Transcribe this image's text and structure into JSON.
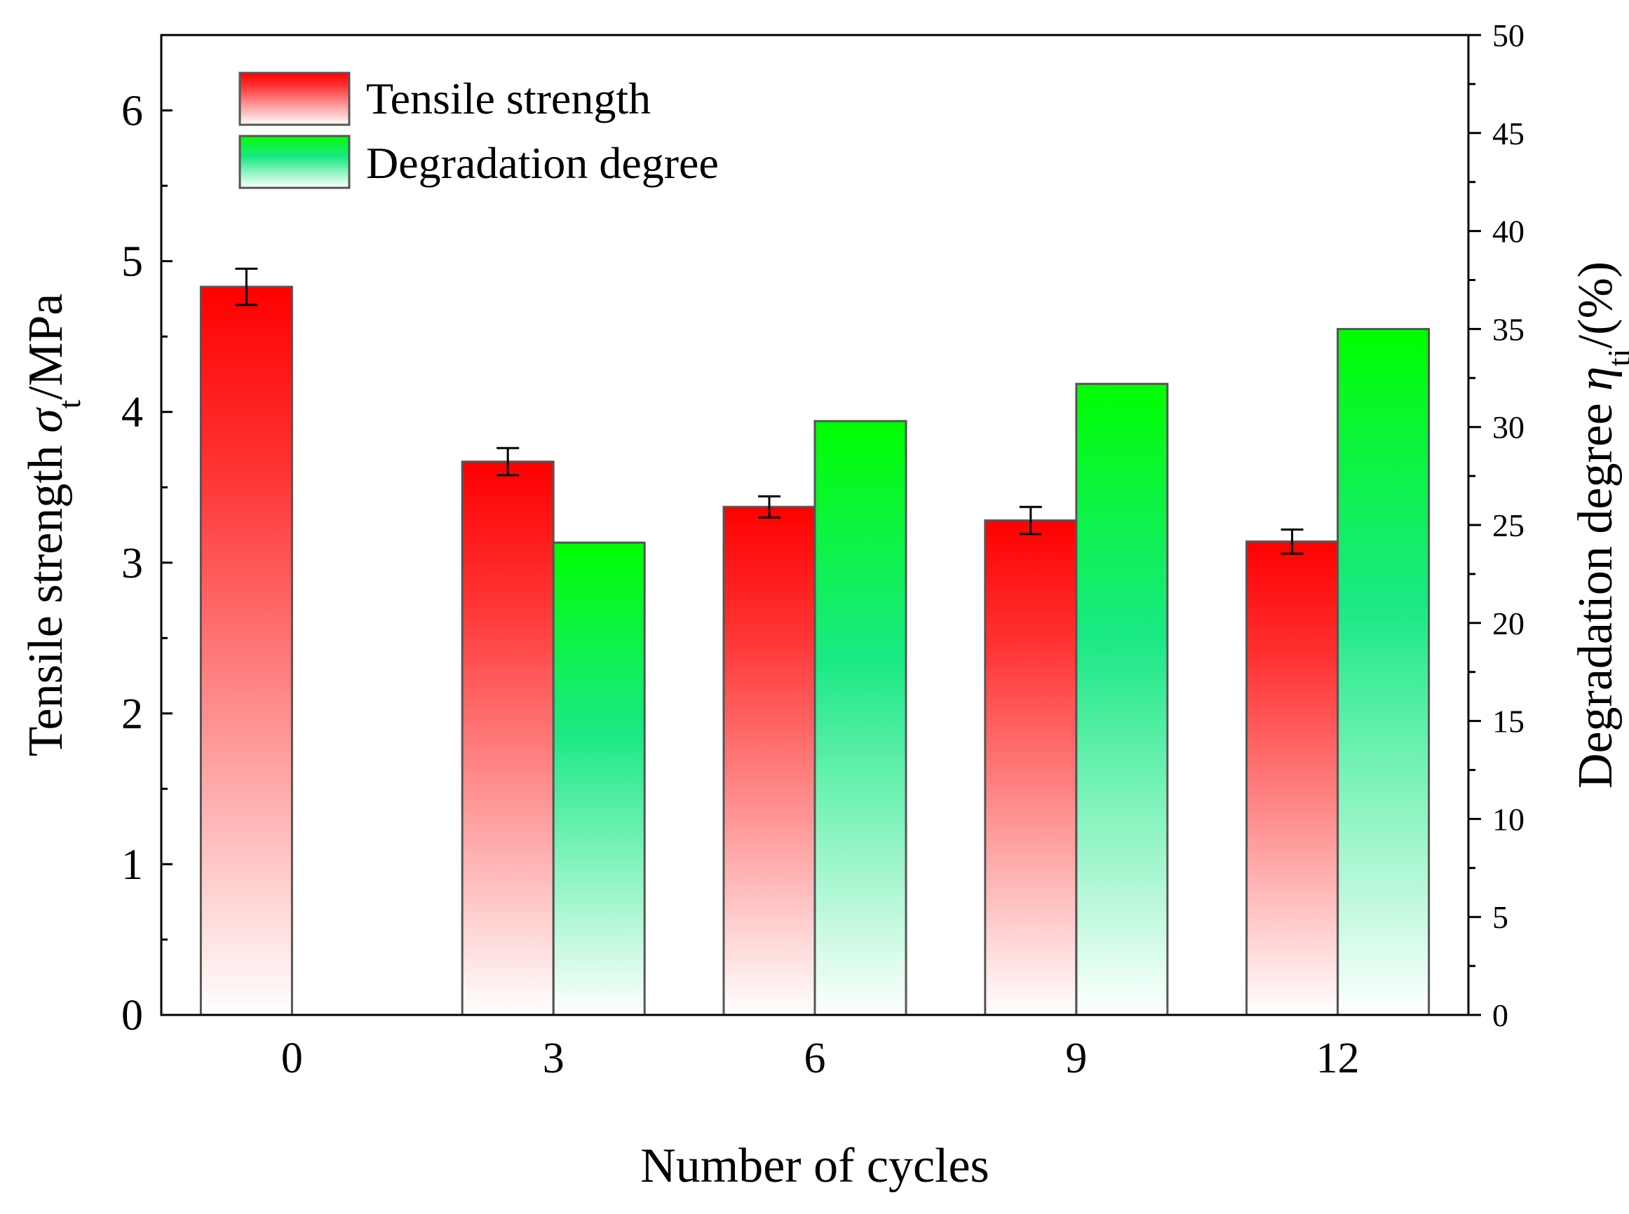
{
  "chart_data": {
    "type": "bar",
    "title": "",
    "xlabel": "Number of cycles",
    "ylabel": {
      "prefix": "Tensile strength ",
      "symbol": "σ",
      "subscript": "t",
      "suffix": "/MPa"
    },
    "y2label": {
      "prefix": "Degradation degree ",
      "symbol": "η",
      "subscript": "ti",
      "suffix": "/(%)"
    },
    "categories": [
      "0",
      "3",
      "6",
      "9",
      "12"
    ],
    "ylim": [
      0,
      6.5
    ],
    "y2lim": [
      0,
      50
    ],
    "yticks": [
      0,
      1,
      2,
      3,
      4,
      5,
      6
    ],
    "y2ticks": [
      0,
      5,
      10,
      15,
      20,
      25,
      30,
      35,
      40,
      45,
      50
    ],
    "grid": false,
    "legend_position": "top-left",
    "series": [
      {
        "name": "Tensile strength",
        "axis": "left",
        "color": "#ff0000",
        "values": [
          4.83,
          3.67,
          3.37,
          3.28,
          3.14
        ],
        "errors": [
          0.12,
          0.09,
          0.07,
          0.09,
          0.08
        ]
      },
      {
        "name": "Degradation degree",
        "axis": "right",
        "color": "#00e000",
        "values": [
          null,
          24.1,
          30.3,
          32.2,
          35.0
        ]
      }
    ]
  }
}
